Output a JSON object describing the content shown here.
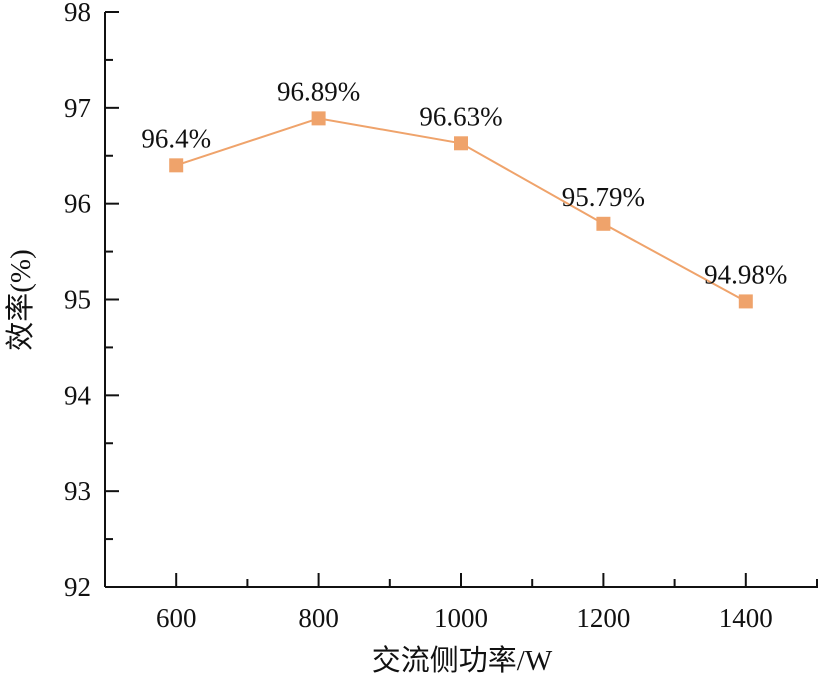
{
  "chart_data": {
    "type": "line",
    "title": "",
    "xlabel": "交流侧功率/W",
    "ylabel": "效率(%)",
    "x": [
      600,
      800,
      1000,
      1200,
      1400
    ],
    "categories": [
      "600",
      "800",
      "1000",
      "1200",
      "1400"
    ],
    "series": [
      {
        "name": "效率",
        "values": [
          96.4,
          96.89,
          96.63,
          95.79,
          94.98
        ],
        "labels": [
          "96.4%",
          "96.89%",
          "96.63%",
          "95.79%",
          "94.98%"
        ],
        "color": "#EFA36B",
        "marker": "square"
      }
    ],
    "xlim": [
      500,
      1500
    ],
    "ylim": [
      92,
      98
    ],
    "xticks": [
      600,
      800,
      1000,
      1200,
      1400
    ],
    "yticks": [
      92,
      93,
      94,
      95,
      96,
      97,
      98
    ],
    "grid": false,
    "legend": null
  },
  "axes": {
    "x_tick_labels": [
      "600",
      "800",
      "1000",
      "1200",
      "1400"
    ],
    "y_tick_labels": [
      "92",
      "93",
      "94",
      "95",
      "96",
      "97",
      "98"
    ],
    "xlabel": "交流侧功率/W",
    "ylabel": "效率(%)"
  }
}
